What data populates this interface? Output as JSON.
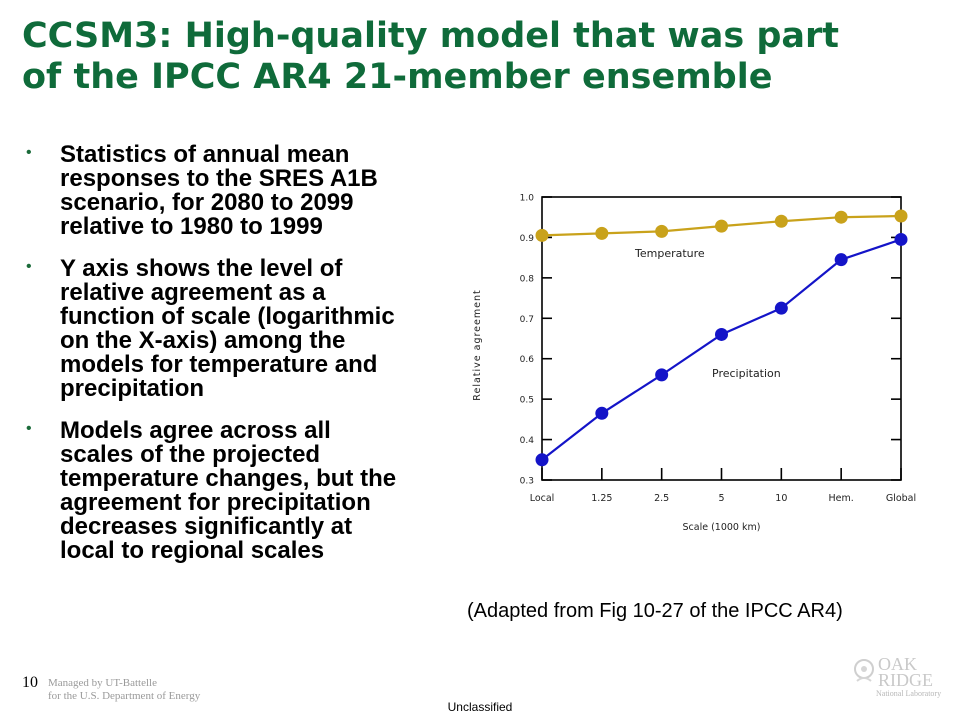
{
  "slide": {
    "title_lines": [
      "CCSM3: High-quality model that was part",
      "of the IPCC AR4 21-member ensemble"
    ],
    "bullets": [
      {
        "lines": [
          "Statistics of annual mean",
          "responses to the SRES A1B",
          "scenario, for 2080 to 2099",
          "relative to 1980 to 1999"
        ]
      },
      {
        "lines": [
          "Y axis shows the level of",
          "relative agreement as a",
          "function of scale (logarithmic",
          "on the X-axis) among the",
          "models for temperature and",
          "precipitation"
        ]
      },
      {
        "lines": [
          "Models agree across all",
          "scales of the projected",
          "temperature changes, but the",
          "agreement for precipitation",
          "decreases significantly at",
          "local to regional scales"
        ]
      }
    ],
    "bullet_symbol": "•",
    "caption": "(Adapted from Fig 10-27 of the IPCC AR4)",
    "slide_number": "10",
    "managed_by_lines": [
      "Managed by UT-Battelle",
      "for the U.S. Department of Energy"
    ],
    "classification": "Unclassified",
    "logo": {
      "lines": [
        "OAK",
        "RIDGE"
      ],
      "sub": "National Laboratory"
    }
  },
  "colors": {
    "title": "#0f6b3a",
    "temperature": "#c9a21b",
    "precipitation": "#1414c8",
    "axis": "#000000"
  },
  "chart_data": {
    "type": "line",
    "categories": [
      "Local",
      "1.25",
      "2.5",
      "5",
      "10",
      "Hem.",
      "Global"
    ],
    "series": [
      {
        "name": "Temperature",
        "values": [
          0.905,
          0.91,
          0.915,
          0.928,
          0.94,
          0.95,
          0.953
        ]
      },
      {
        "name": "Precipitation",
        "values": [
          0.35,
          0.465,
          0.56,
          0.66,
          0.725,
          0.845,
          0.895
        ]
      }
    ],
    "xlabel": "Scale (1000 km)",
    "ylabel": "Relative agreement",
    "ylim": [
      0.3,
      1.0
    ],
    "yticks": [
      "1.0",
      "0.9",
      "0.8",
      "0.7",
      "0.6",
      "0.5",
      "0.4",
      "0.3"
    ],
    "grid": false,
    "series_labels": "inline"
  }
}
